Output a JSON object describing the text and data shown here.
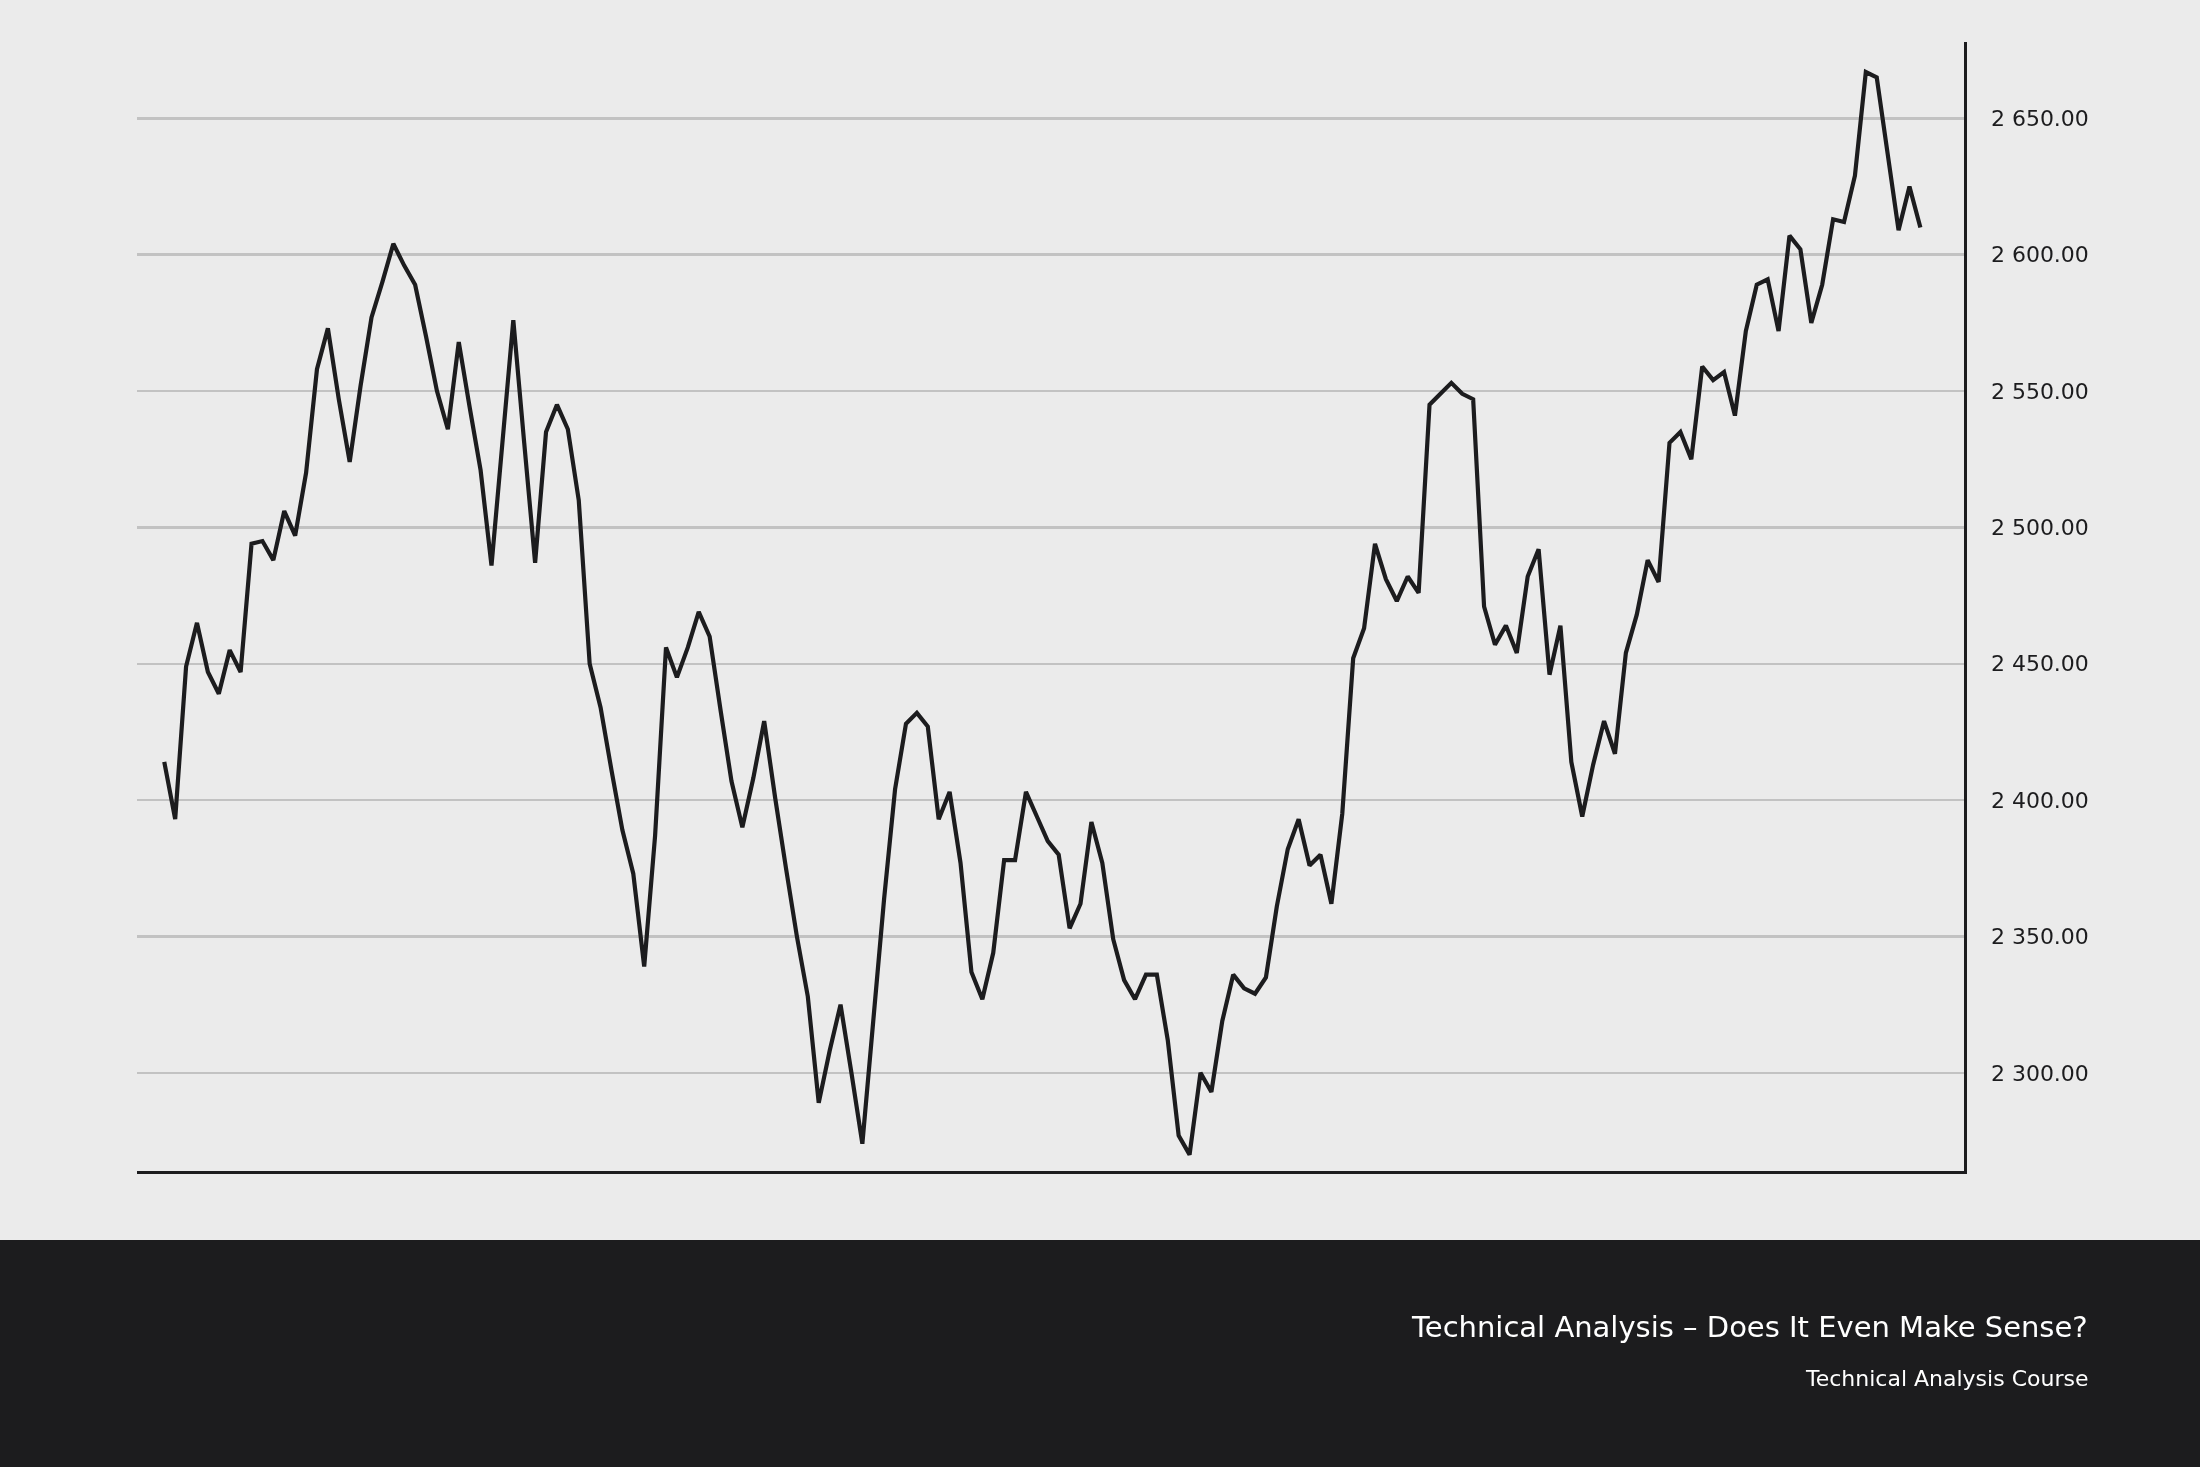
{
  "chart_data": {
    "type": "line",
    "title": "Technical Analysis – Does It Even Make Sense?",
    "subtitle": "Technical Analysis Course",
    "categories": [
      null,
      null,
      null,
      null,
      null,
      null,
      null,
      null,
      null,
      null,
      null,
      null,
      null,
      null,
      null,
      null,
      null,
      null,
      null,
      null,
      null,
      null,
      null,
      null,
      null,
      null,
      null,
      null,
      null,
      null,
      null,
      null,
      null,
      null,
      null,
      null,
      null,
      null,
      null,
      null,
      null,
      null,
      null,
      null,
      null,
      null,
      null,
      null,
      null,
      null,
      null,
      null,
      null,
      null,
      null,
      null,
      null,
      null,
      null,
      null,
      null,
      null,
      null,
      null,
      null,
      null,
      null,
      null,
      null,
      null,
      null,
      null,
      null,
      null,
      null,
      null,
      null,
      null,
      null,
      null,
      null,
      null,
      null,
      null,
      null,
      null,
      null,
      null,
      null,
      null,
      null,
      null,
      null,
      null,
      null,
      null,
      null,
      null,
      null,
      null,
      null,
      null,
      null,
      null,
      null,
      null,
      null,
      null,
      null,
      null,
      null,
      null,
      null,
      null,
      null,
      null,
      null,
      null,
      null,
      null,
      null,
      null,
      null,
      null,
      null,
      null,
      null,
      null,
      null,
      null,
      null,
      null,
      null,
      null,
      null,
      null,
      null,
      null,
      null,
      null,
      null,
      null,
      null,
      null,
      null,
      null,
      null,
      null,
      null,
      null,
      null,
      null,
      null,
      null,
      null,
      null,
      null,
      null,
      null,
      null,
      null,
      null
    ],
    "series": [
      {
        "color": "#1c1c1e",
        "values": [
          2414,
          2393,
          2449,
          2465,
          2447,
          2439,
          2455,
          2447,
          2494,
          2495,
          2488,
          2506,
          2497,
          2520,
          2558,
          2573,
          2547,
          2524,
          2552,
          2577,
          2590,
          2604,
          2596,
          2589,
          2570,
          2550,
          2536,
          2568,
          2544,
          2521,
          2486,
          2531,
          2576,
          2531,
          2487,
          2535,
          2545,
          2536,
          2510,
          2450,
          2434,
          2411,
          2389,
          2373,
          2339,
          2387,
          2456,
          2445,
          2456,
          2469,
          2460,
          2433,
          2407,
          2390,
          2408,
          2429,
          2401,
          2375,
          2350,
          2328,
          2289,
          2308,
          2325,
          2300,
          2274,
          2319,
          2364,
          2404,
          2428,
          2432,
          2427,
          2393,
          2403,
          2377,
          2337,
          2327,
          2344,
          2378,
          2378,
          2403,
          2394,
          2385,
          2380,
          2353,
          2362,
          2392,
          2377,
          2349,
          2334,
          2327,
          2336,
          2336,
          2312,
          2277,
          2270,
          2300,
          2293,
          2319,
          2336,
          2331,
          2329,
          2335,
          2361,
          2382,
          2393,
          2376,
          2380,
          2362,
          2395,
          2452,
          2463,
          2494,
          2481,
          2473,
          2482,
          2476,
          2545,
          2549,
          2553,
          2549,
          2547,
          2471,
          2457,
          2464,
          2454,
          2482,
          2492,
          2446,
          2464,
          2414,
          2394,
          2413,
          2429,
          2417,
          2454,
          2468,
          2488,
          2480,
          2531,
          2535,
          2525,
          2559,
          2554,
          2557,
          2541,
          2572,
          2589,
          2591,
          2572,
          2607,
          2602,
          2575,
          2589,
          2613,
          2612,
          2629,
          2667,
          2665,
          2637,
          2609,
          2625,
          2610
        ]
      }
    ],
    "ylim": [
      2264,
      2678
    ],
    "yticks": [
      {
        "value": 2300,
        "label": "2 300.00"
      },
      {
        "value": 2350,
        "label": "2 350.00"
      },
      {
        "value": 2400,
        "label": "2 400.00"
      },
      {
        "value": 2450,
        "label": "2 450.00"
      },
      {
        "value": 2500,
        "label": "2 500.00"
      },
      {
        "value": 2550,
        "label": "2 550.00"
      },
      {
        "value": 2600,
        "label": "2 600.00"
      },
      {
        "value": 2650,
        "label": "2 650.00"
      }
    ],
    "grid": "y",
    "tick_labels": "y",
    "marker": "none",
    "line_style": "solid"
  }
}
